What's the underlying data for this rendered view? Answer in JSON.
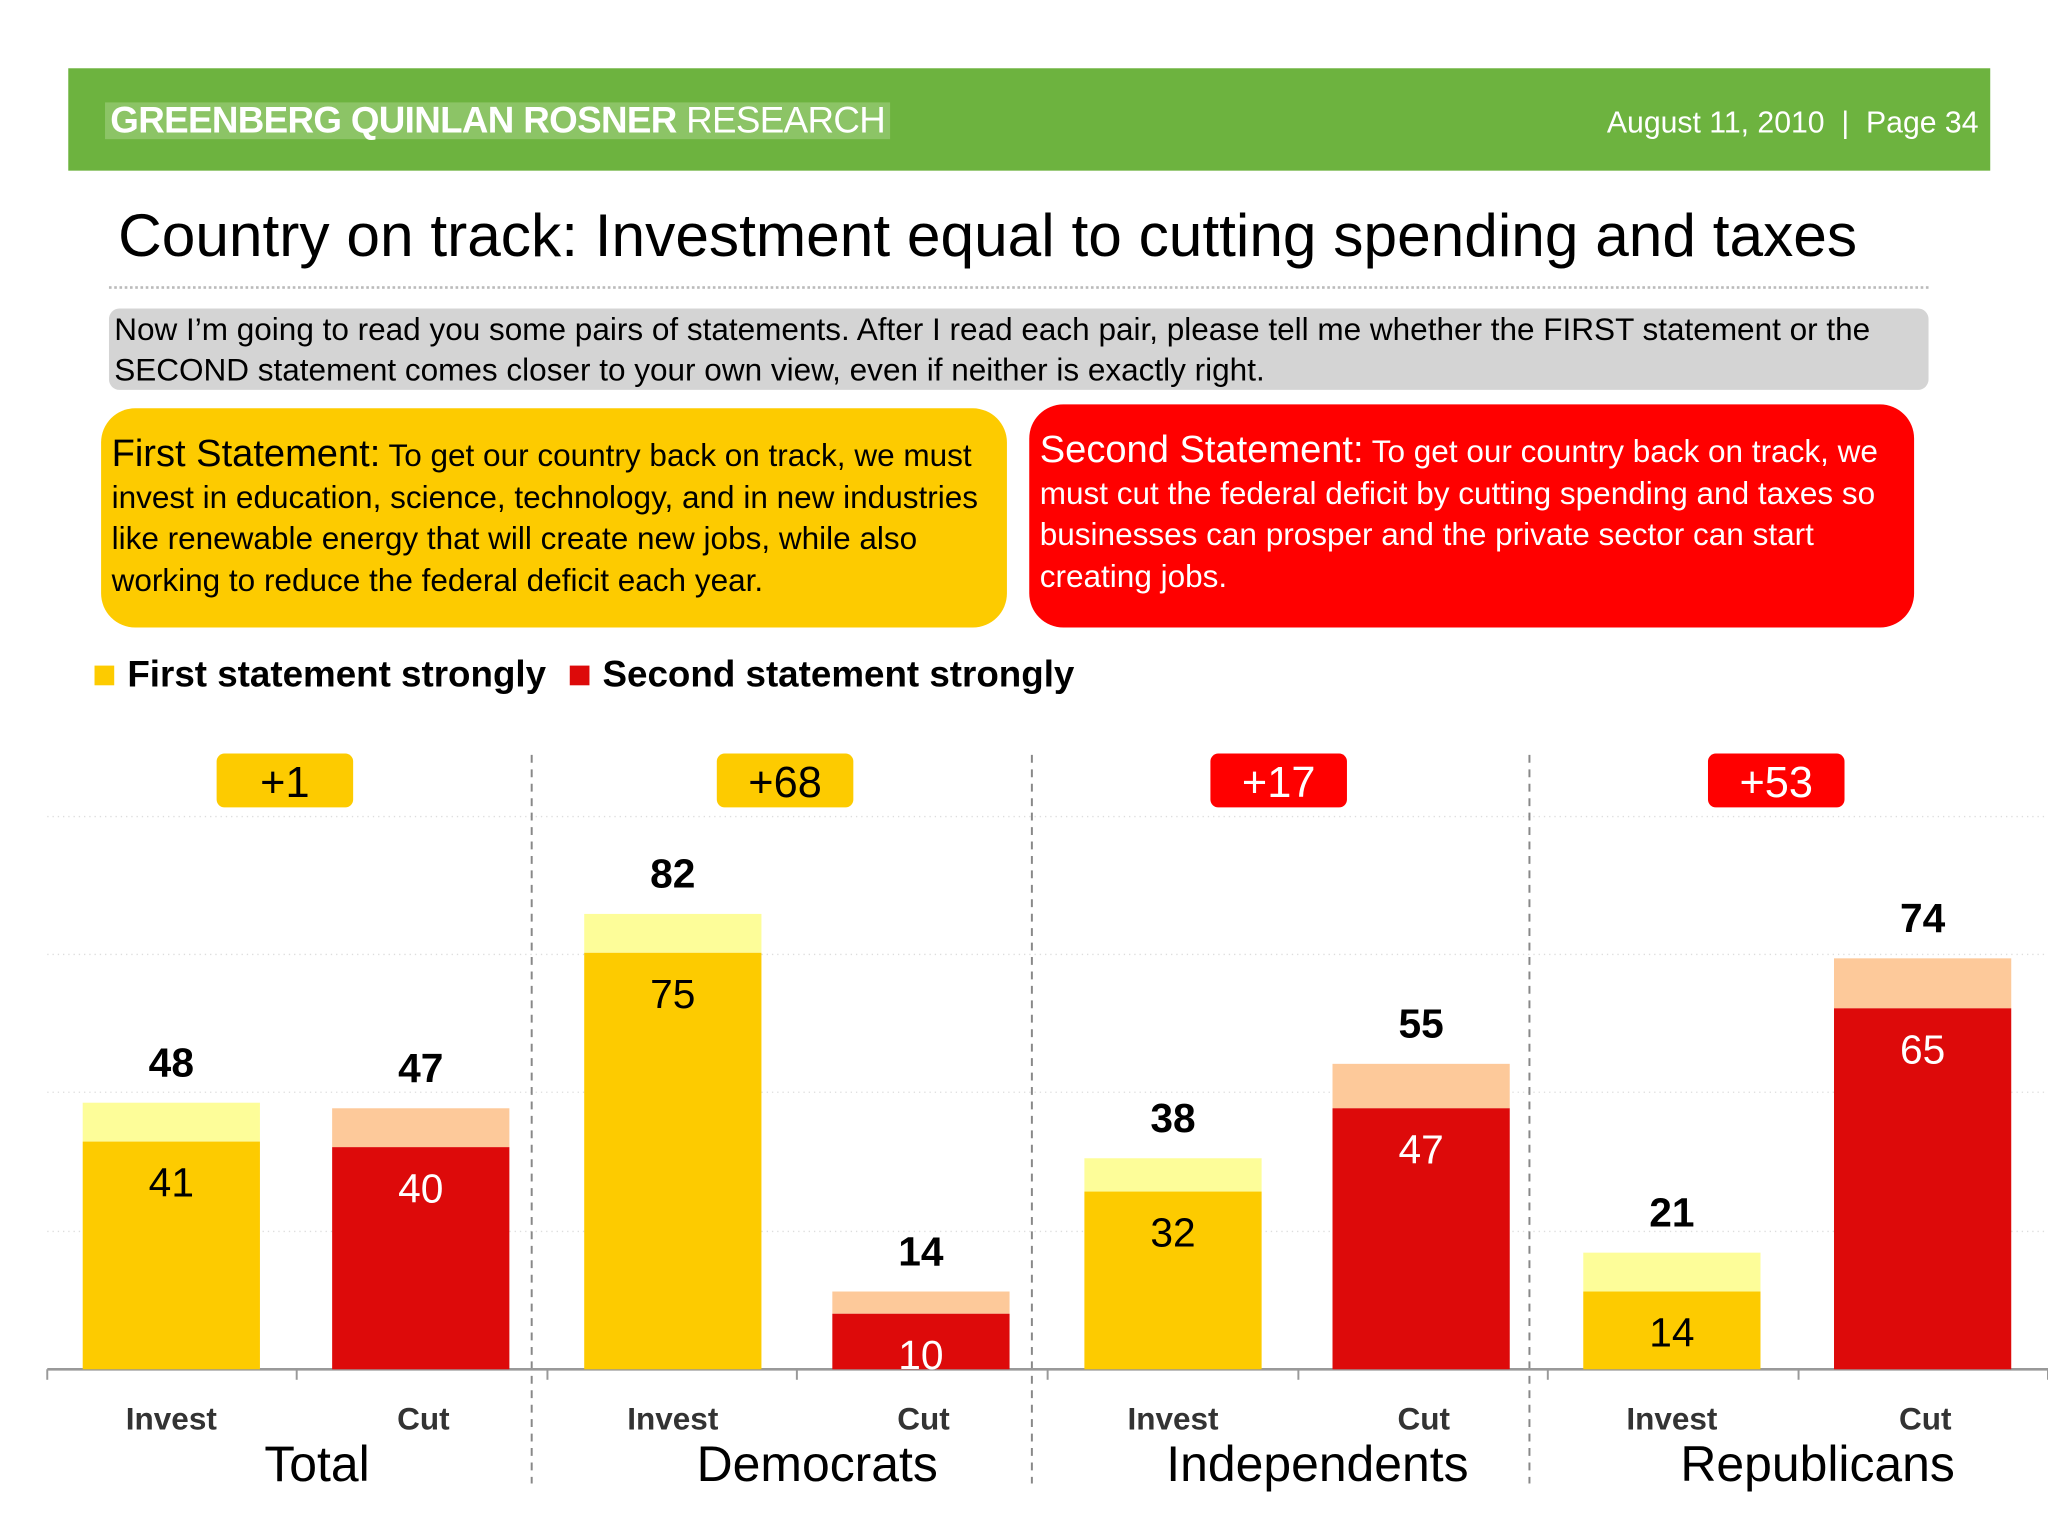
{
  "header": {
    "logo_bold": "GREENBERG QUINLAN ROSNER",
    "logo_light": "RESEARCH",
    "date": "August 11, 2010",
    "separator": "|",
    "page": "Page 34",
    "banner_color": "#6db33f"
  },
  "title": "Country on track: Investment equal to cutting spending and taxes",
  "question": "Now I’m going to read you some pairs of statements. After I read each pair, please tell me whether the FIRST statement or the SECOND statement comes closer to your own view, even if neither is exactly right.",
  "first_statement": {
    "lead": "First Statement:",
    "text": " To get our country back on track, we must invest in education, science, technology, and in new industries like renewable energy that will create new jobs, while also working to reduce the federal deficit each year.",
    "color": "#fdcb00"
  },
  "second_statement": {
    "lead": "Second Statement:",
    "text": " To get our country back on track, we must cut the federal deficit by cutting spending and taxes so businesses can prosper and the private sector can start creating jobs.",
    "color": "#ff0000"
  },
  "chart_data": {
    "type": "bar",
    "stacked": true,
    "legend": {
      "placement": "top-left",
      "entries": [
        {
          "label": "First statement strongly",
          "color": "#fdcb00"
        },
        {
          "label": "Second statement strongly",
          "color": "#dd0a0a"
        }
      ]
    },
    "ylim": [
      0,
      100
    ],
    "grid": true,
    "groups": [
      {
        "label": "Total",
        "margin": "+1",
        "margin_color": "#fdcb00",
        "bars": [
          {
            "category": "Invest",
            "strongly": 41,
            "total": 48
          },
          {
            "category": "Cut",
            "strongly": 40,
            "total": 47
          }
        ]
      },
      {
        "label": "Democrats",
        "margin": "+68",
        "margin_color": "#fdcb00",
        "bars": [
          {
            "category": "Invest",
            "strongly": 75,
            "total": 82
          },
          {
            "category": "Cut",
            "strongly": 10,
            "total": 14
          }
        ]
      },
      {
        "label": "Independents",
        "margin": "+17",
        "margin_color": "#ff0000",
        "bars": [
          {
            "category": "Invest",
            "strongly": 32,
            "total": 38
          },
          {
            "category": "Cut",
            "strongly": 47,
            "total": 55
          }
        ]
      },
      {
        "label": "Republicans",
        "margin": "+53",
        "margin_color": "#ff0000",
        "bars": [
          {
            "category": "Invest",
            "strongly": 14,
            "total": 21
          },
          {
            "category": "Cut",
            "strongly": 65,
            "total": 74
          }
        ]
      }
    ],
    "colors": {
      "invest_strong": "#fdcb00",
      "invest_light": "#fdfd99",
      "cut_strong": "#dd0a0a",
      "cut_light": "#fdc99a"
    }
  }
}
